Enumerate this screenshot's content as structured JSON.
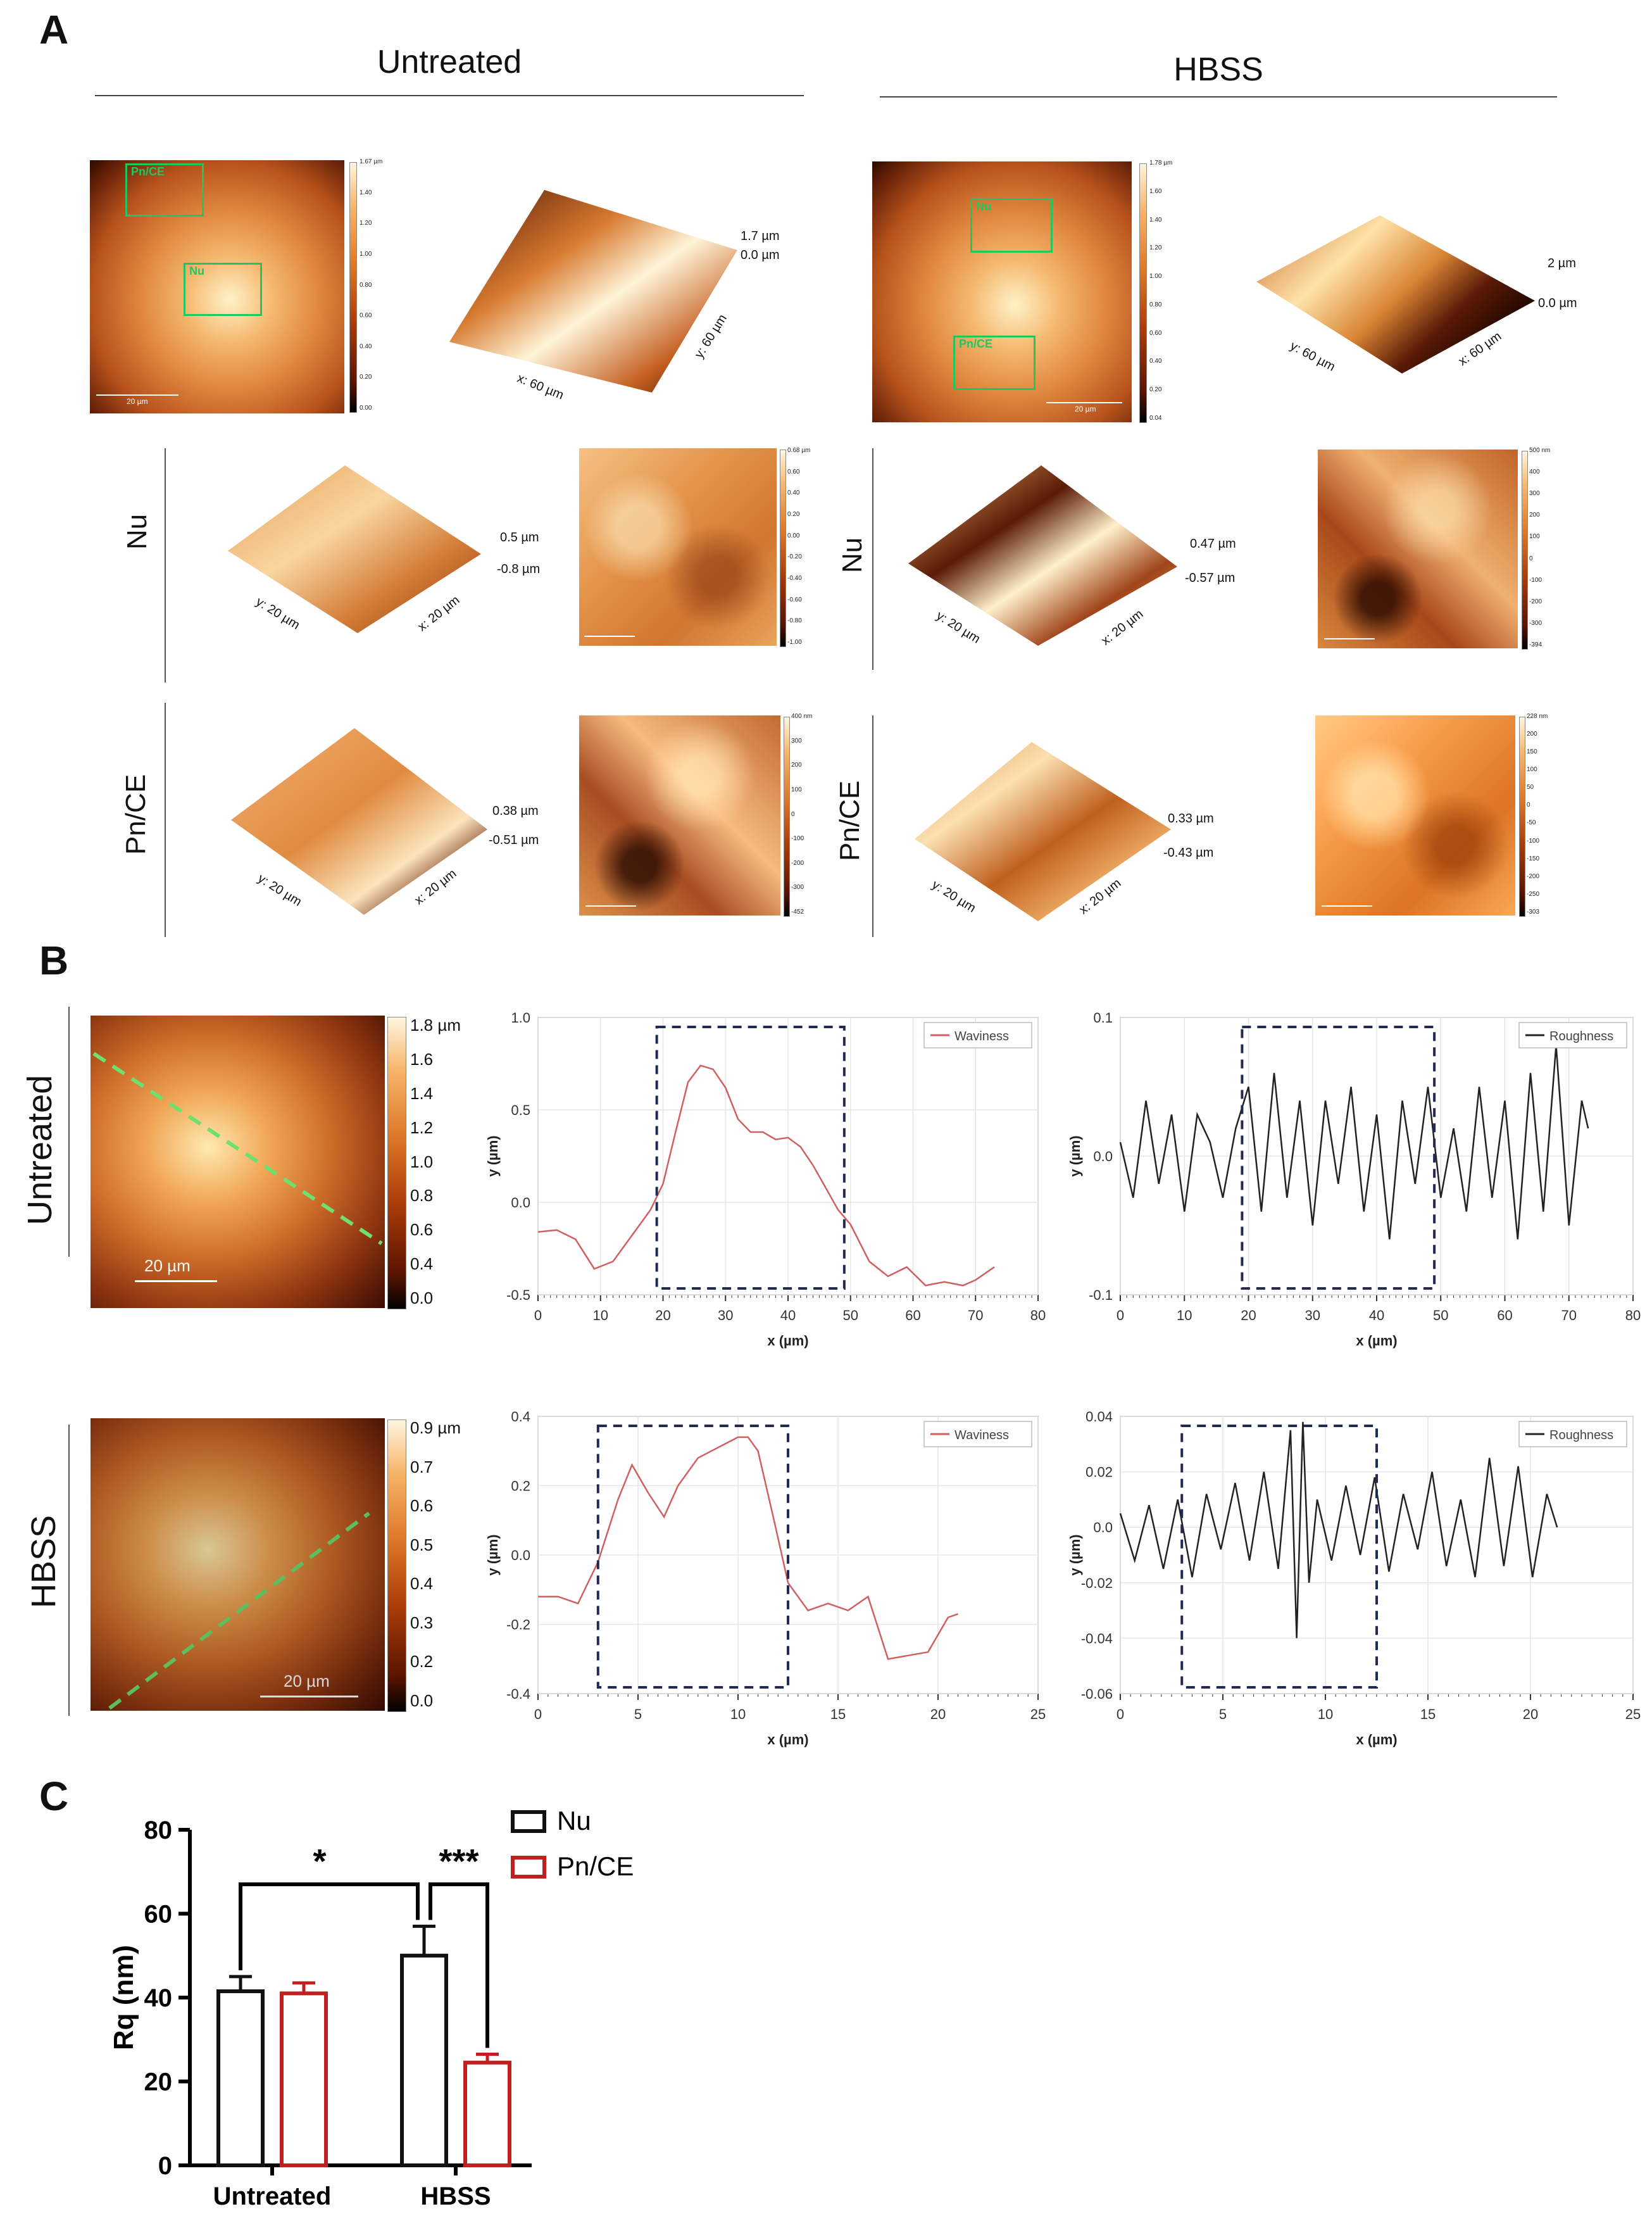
{
  "panel_letters": {
    "a": "A",
    "b": "B",
    "c": "C"
  },
  "panel_a": {
    "group_left": "Untreated",
    "group_right": "HBSS",
    "row_labels": {
      "nu": "Nu",
      "pn": "Pn/CE"
    },
    "untreated_overview": {
      "colorbar": [
        "1.67 µm",
        "1.40",
        "1.20",
        "1.00",
        "0.80",
        "0.60",
        "0.40",
        "0.20",
        "0.00"
      ],
      "boxes": [
        "Pn/CE",
        "Nu"
      ],
      "scale": "20 µm",
      "z_labels": [
        "1.7 µm",
        "0.0 µm"
      ],
      "axes": [
        "y: 60 µm",
        "x: 60 µm"
      ]
    },
    "hbss_overview": {
      "colorbar": [
        "1.78 µm",
        "1.60",
        "1.40",
        "1.20",
        "1.00",
        "0.80",
        "0.60",
        "0.40",
        "0.20",
        "0.04"
      ],
      "boxes": [
        "Nu",
        "Pn/CE"
      ],
      "scale": "20 µm",
      "z_labels": [
        "2 µm",
        "0.0 µm"
      ],
      "axes": [
        "y: 60 µm",
        "x: 60 µm"
      ]
    },
    "untreated_nu": {
      "z_labels": [
        "0.5 µm",
        "-0.8 µm"
      ],
      "axes": [
        "y: 20 µm",
        "x: 20 µm"
      ],
      "colorbar": [
        "0.68 µm",
        "0.60",
        "0.40",
        "0.20",
        "0.00",
        "-0.20",
        "-0.40",
        "-0.60",
        "-0.80",
        "-1.00"
      ],
      "scale": "5 µm"
    },
    "hbss_nu": {
      "z_labels": [
        "0.47 µm",
        "-0.57 µm"
      ],
      "axes": [
        "y: 20 µm",
        "x: 20 µm"
      ],
      "colorbar": [
        "500 nm",
        "400",
        "300",
        "200",
        "100",
        "0",
        "-100",
        "-200",
        "-300",
        "-394"
      ],
      "scale": "5 µm"
    },
    "untreated_pn": {
      "z_labels": [
        "0.38 µm",
        "-0.51 µm"
      ],
      "axes": [
        "y: 20 µm",
        "x: 20 µm"
      ],
      "colorbar": [
        "400 nm",
        "300",
        "200",
        "100",
        "0",
        "-100",
        "-200",
        "-300",
        "-452"
      ],
      "scale": "5 µm"
    },
    "hbss_pn": {
      "z_labels": [
        "0.33 µm",
        "-0.43 µm"
      ],
      "axes": [
        "y: 20 µm",
        "x: 20 µm"
      ],
      "colorbar": [
        "228 nm",
        "200",
        "150",
        "100",
        "50",
        "0",
        "-50",
        "-100",
        "-150",
        "-200",
        "-250",
        "-303"
      ],
      "scale": "5 µm"
    }
  },
  "panel_b": {
    "row_labels": [
      "Untreated",
      "HBSS"
    ],
    "untreated_colorbar": [
      "1.8 µm",
      "1.6",
      "1.4",
      "1.2",
      "1.0",
      "0.8",
      "0.6",
      "0.4",
      "0.0"
    ],
    "hbss_colorbar": [
      "0.9 µm",
      "0.7",
      "0.6",
      "0.5",
      "0.4",
      "0.3",
      "0.2",
      "0.0"
    ],
    "scale": "20 µm"
  },
  "chart_data": [
    {
      "type": "line",
      "legend": "Waviness",
      "xlabel": "x (µm)",
      "ylabel": "y (µm)",
      "xlim": [
        0,
        80
      ],
      "ylim": [
        -0.5,
        1.0
      ],
      "xticks": [
        "0",
        "10",
        "20",
        "30",
        "40",
        "50",
        "60",
        "70",
        "80"
      ],
      "yticks": [
        "-0.5",
        "0.0",
        "0.5",
        "1.0"
      ],
      "color": "#d06060",
      "x": [
        0,
        3,
        6,
        9,
        12,
        15,
        18,
        20,
        22,
        24,
        26,
        28,
        30,
        32,
        34,
        36,
        38,
        40,
        42,
        44,
        46,
        48,
        50,
        53,
        56,
        59,
        62,
        65,
        68,
        70,
        73
      ],
      "y": [
        -0.16,
        -0.15,
        -0.2,
        -0.36,
        -0.32,
        -0.18,
        -0.04,
        0.1,
        0.38,
        0.65,
        0.74,
        0.72,
        0.62,
        0.45,
        0.38,
        0.38,
        0.34,
        0.35,
        0.3,
        0.2,
        0.08,
        -0.04,
        -0.12,
        -0.32,
        -0.4,
        -0.35,
        -0.45,
        -0.43,
        -0.45,
        -0.42,
        -0.35
      ],
      "box_x": [
        19,
        49
      ]
    },
    {
      "type": "line",
      "legend": "Roughness",
      "xlabel": "x (µm)",
      "ylabel": "y (µm)",
      "xlim": [
        0,
        80
      ],
      "ylim": [
        -0.1,
        0.1
      ],
      "xticks": [
        "0",
        "10",
        "20",
        "30",
        "40",
        "50",
        "60",
        "70",
        "80"
      ],
      "yticks": [
        "-0.1",
        "0.0",
        "0.1"
      ],
      "color": "#222222",
      "x": [
        0,
        2,
        4,
        6,
        8,
        10,
        12,
        14,
        16,
        18,
        20,
        22,
        24,
        26,
        28,
        30,
        32,
        34,
        36,
        38,
        40,
        42,
        44,
        46,
        48,
        50,
        52,
        54,
        56,
        58,
        60,
        62,
        64,
        66,
        68,
        70,
        72,
        73
      ],
      "y": [
        0.01,
        -0.03,
        0.04,
        -0.02,
        0.03,
        -0.04,
        0.03,
        0.01,
        -0.03,
        0.02,
        0.05,
        -0.04,
        0.06,
        -0.03,
        0.04,
        -0.05,
        0.04,
        -0.02,
        0.05,
        -0.04,
        0.03,
        -0.06,
        0.04,
        -0.02,
        0.05,
        -0.03,
        0.02,
        -0.04,
        0.05,
        -0.03,
        0.04,
        -0.06,
        0.06,
        -0.04,
        0.08,
        -0.05,
        0.04,
        0.02
      ],
      "box_x": [
        19,
        49
      ]
    },
    {
      "type": "line",
      "legend": "Waviness",
      "xlabel": "x (µm)",
      "ylabel": "y (µm)",
      "xlim": [
        0,
        25
      ],
      "ylim": [
        -0.4,
        0.4
      ],
      "xticks": [
        "0",
        "5",
        "10",
        "15",
        "20",
        "25"
      ],
      "yticks": [
        "-0.4",
        "-0.2",
        "0.0",
        "0.2",
        "0.4"
      ],
      "color": "#d06060",
      "x": [
        0,
        1,
        2,
        3,
        4,
        4.7,
        5.5,
        6.3,
        7,
        8,
        9,
        10,
        10.5,
        11,
        11.8,
        12.5,
        13.5,
        14.5,
        15.5,
        16.5,
        17.5,
        18.5,
        19.5,
        20.5,
        21
      ],
      "y": [
        -0.12,
        -0.12,
        -0.14,
        -0.02,
        0.16,
        0.26,
        0.18,
        0.11,
        0.2,
        0.28,
        0.31,
        0.34,
        0.34,
        0.3,
        0.1,
        -0.08,
        -0.16,
        -0.14,
        -0.16,
        -0.12,
        -0.3,
        -0.29,
        -0.28,
        -0.18,
        -0.17
      ],
      "box_x": [
        3,
        12.5
      ]
    },
    {
      "type": "line",
      "legend": "Roughness",
      "xlabel": "x (µm)",
      "ylabel": "y (µm)",
      "xlim": [
        0,
        25
      ],
      "ylim": [
        -0.06,
        0.04
      ],
      "xticks": [
        "0",
        "5",
        "10",
        "15",
        "20",
        "25"
      ],
      "yticks": [
        "-0.06",
        "-0.04",
        "-0.02",
        "0.0",
        "0.02",
        "0.04"
      ],
      "color": "#222222",
      "x": [
        0,
        0.7,
        1.4,
        2.1,
        2.8,
        3.5,
        4.2,
        4.9,
        5.6,
        6.3,
        7,
        7.7,
        8.3,
        8.6,
        8.9,
        9.2,
        9.6,
        10.3,
        11,
        11.7,
        12.4,
        13.1,
        13.8,
        14.5,
        15.2,
        15.9,
        16.6,
        17.3,
        18,
        18.7,
        19.4,
        20.1,
        20.8,
        21.3
      ],
      "y": [
        0.005,
        -0.012,
        0.008,
        -0.015,
        0.01,
        -0.018,
        0.012,
        -0.008,
        0.016,
        -0.012,
        0.02,
        -0.015,
        0.035,
        -0.04,
        0.038,
        -0.02,
        0.01,
        -0.012,
        0.015,
        -0.01,
        0.018,
        -0.016,
        0.012,
        -0.008,
        0.02,
        -0.014,
        0.01,
        -0.018,
        0.025,
        -0.014,
        0.022,
        -0.018,
        0.012,
        0.0
      ],
      "box_x": [
        3,
        12.5
      ]
    },
    {
      "type": "bar",
      "title": "",
      "ylabel": "Rq (nm)",
      "categories": [
        "Untreated",
        "HBSS"
      ],
      "ylim": [
        0,
        80
      ],
      "yticks": [
        "0",
        "20",
        "40",
        "60",
        "80"
      ],
      "series": [
        {
          "name": "Nu",
          "values": [
            41.5,
            50.0
          ],
          "errors": [
            3.5,
            7.0
          ],
          "color": "#111111"
        },
        {
          "name": "Pn/CE",
          "values": [
            41.0,
            24.5
          ],
          "errors": [
            2.5,
            2.0
          ],
          "color": "#c0201e"
        }
      ],
      "significance": [
        "*",
        "***"
      ]
    }
  ]
}
